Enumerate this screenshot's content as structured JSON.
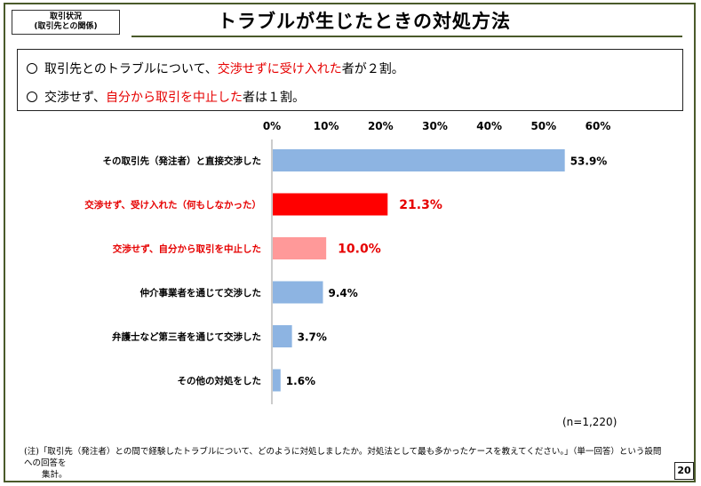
{
  "header": {
    "tag_line1": "取引状況",
    "tag_line2": "(取引先との関係)",
    "title": "トラブルが生じたときの対処方法"
  },
  "summary": {
    "line1": {
      "pre": "取引先とのトラブルについて、",
      "highlight": "交渉せずに受け入れた",
      "post": "者が２割。"
    },
    "line2": {
      "pre": "交渉せず、",
      "highlight": "自分から取引を中止した",
      "post": "者は１割。"
    }
  },
  "colors": {
    "blue": "#8db4e2",
    "red": "#ff0000",
    "pink": "#ff9999",
    "label_red": "#e60000"
  },
  "chart_data": {
    "type": "bar",
    "orientation": "horizontal",
    "categories": [
      "その取引先（発注者）と直接交渉した",
      "交渉せず、受け入れた（何もしなかった）",
      "交渉せず、自分から取引を中止した",
      "仲介事業者を通じて交渉した",
      "弁護士など第三者を通じて交渉した",
      "その他の対処をした"
    ],
    "values": [
      53.9,
      21.3,
      10.0,
      9.4,
      3.7,
      1.6
    ],
    "value_labels": [
      "53.9%",
      "21.3%",
      "10.0%",
      "9.4%",
      "3.7%",
      "1.6%"
    ],
    "highlight": [
      "none",
      "red",
      "pink",
      "none",
      "none",
      "none"
    ],
    "xlim": [
      0,
      60
    ],
    "ticks": [
      "0%",
      "10%",
      "20%",
      "30%",
      "40%",
      "50%",
      "60%"
    ],
    "grid": false,
    "legend": "none"
  },
  "sample_note": "(n=1,220)",
  "footnote": {
    "line1": "(注)「取引先（発注者）との間で経験したトラブルについて、どのように対処しましたか。対処法として最も多かったケースを教えてください。」（単一回答）という設問への回答を",
    "line2": "集計。"
  },
  "page_number": "20"
}
